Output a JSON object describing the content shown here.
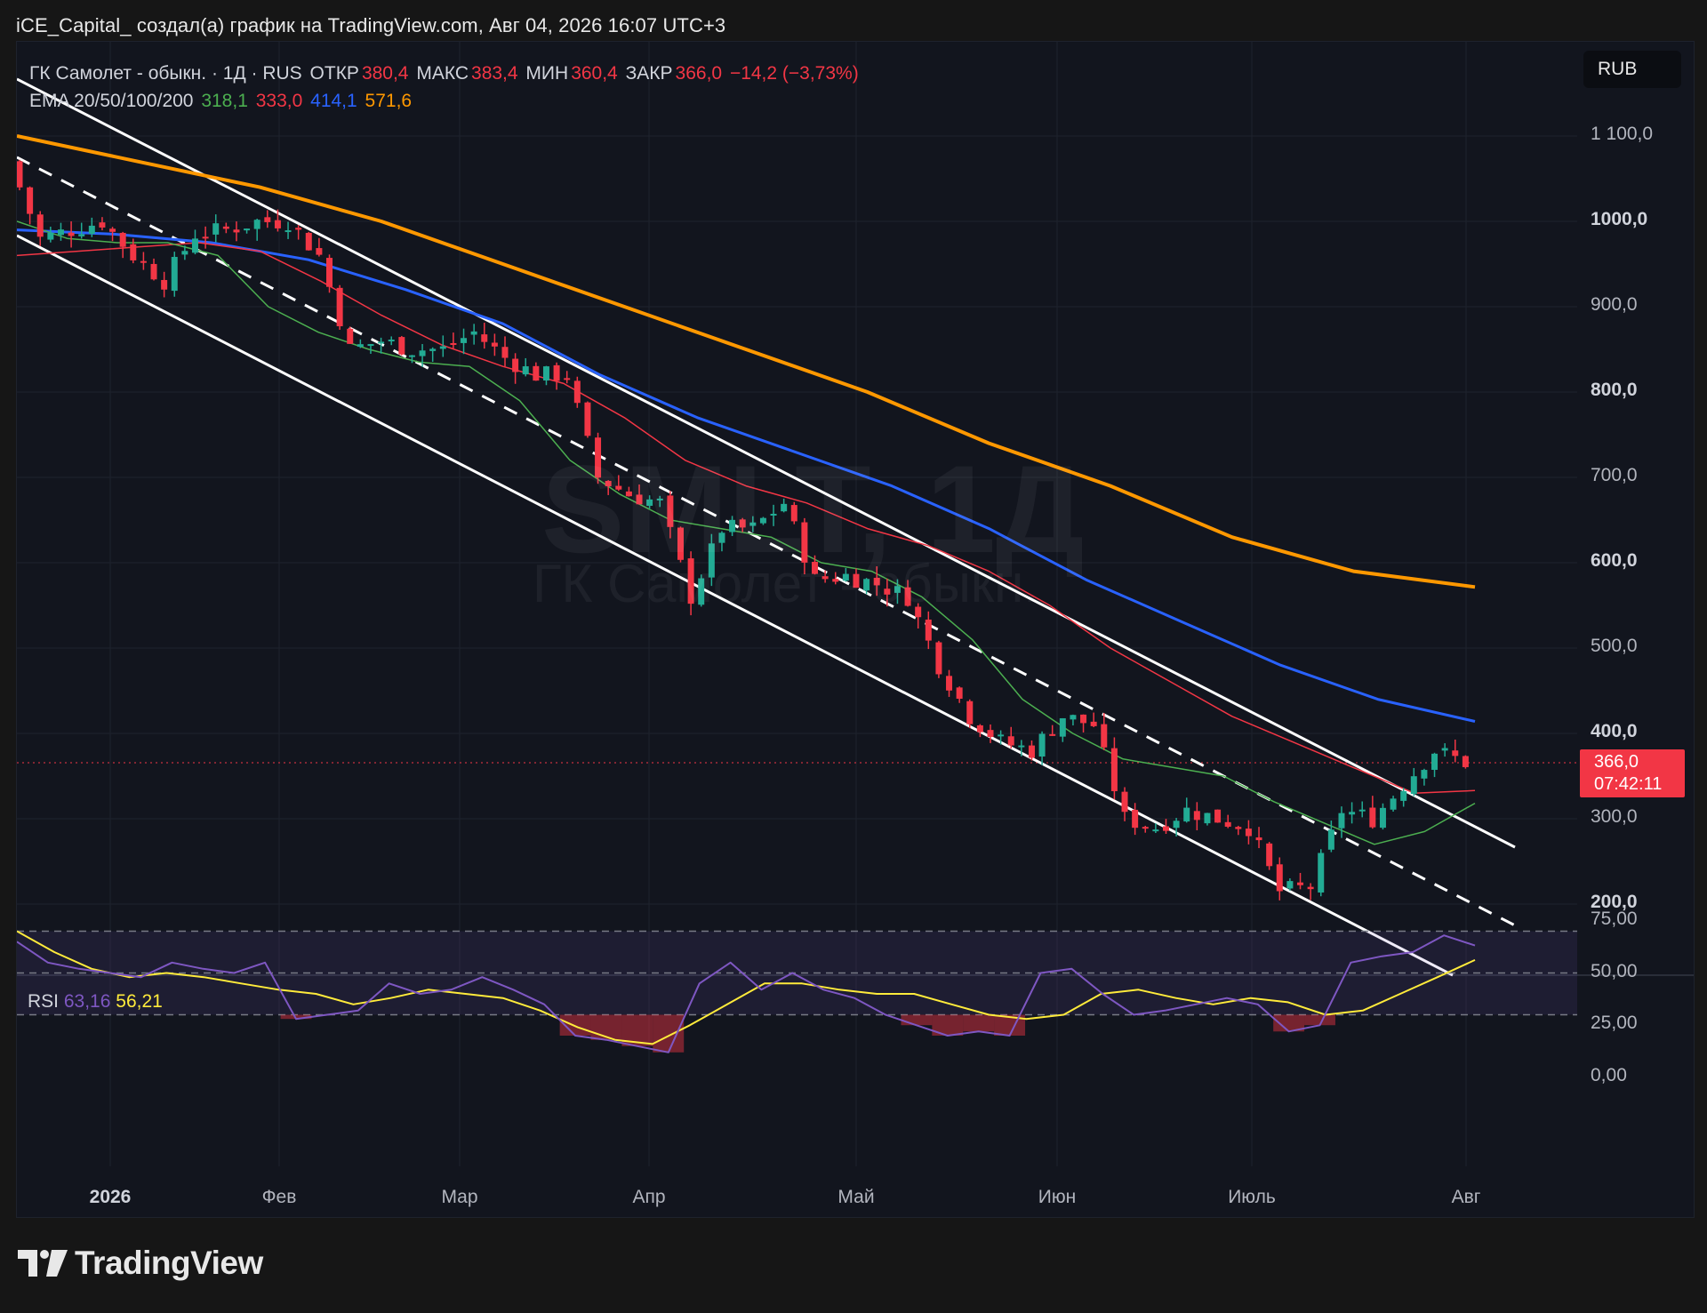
{
  "caption": "iCE_Capital_ создал(а) график на TradingView.com, Авг 04, 2026 16:07 UTC+3",
  "legend": {
    "symbol": "ГК Самолет - обыкн. · 1Д · RUS",
    "open_label": "ОТКР",
    "open": "380,4",
    "high_label": "МАКС",
    "high": "383,4",
    "low_label": "МИН",
    "low": "360,4",
    "close_label": "ЗАКР",
    "close": "366,0",
    "change": "−14,2 (−3,73%)",
    "ema_label": "EMA 20/50/100/200",
    "ema20": "318,1",
    "ema50": "333,0",
    "ema100": "414,1",
    "ema200": "571,6"
  },
  "currency": "RUB",
  "watermark": {
    "ticker": "SMLT, 1Д",
    "name": "ГК Самолет - обыкн."
  },
  "price_badge": {
    "price": "366,0",
    "countdown": "07:42:11"
  },
  "rsi_legend": {
    "label": "RSI",
    "value": "63,16",
    "ma": "56,21"
  },
  "brand": "TradingView",
  "colors": {
    "up": "#22ab94",
    "down": "#f23645",
    "ema20": "#4caf50",
    "ema50": "#f23645",
    "ema100": "#2962ff",
    "ema200": "#ff9800",
    "rsi": "#7e57c2",
    "rsi_ma": "#ffeb3b",
    "channel": "#ffffff"
  },
  "chart_data": {
    "type": "candlestick",
    "y_axis": {
      "ticks": [
        "1 100,0",
        "1000,0",
        "900,0",
        "800,0",
        "700,0",
        "600,0",
        "500,0",
        "400,0",
        "300,0",
        "200,0"
      ],
      "values": [
        1100,
        1000,
        900,
        800,
        700,
        600,
        500,
        400,
        300,
        200
      ],
      "bold": [
        false,
        true,
        false,
        true,
        false,
        true,
        false,
        true,
        false,
        true
      ]
    },
    "x_axis": {
      "ticks": [
        "2026",
        "Фев",
        "Мар",
        "Апр",
        "Май",
        "Июн",
        "Июль",
        "Авг"
      ],
      "bold": [
        true,
        false,
        false,
        false,
        false,
        false,
        false,
        false
      ]
    },
    "price_path": [
      1070,
      980,
      990,
      1000,
      960,
      930,
      985,
      990,
      1000,
      1000,
      960,
      850,
      860,
      850,
      850,
      870,
      840,
      820,
      820,
      700,
      680,
      670,
      560,
      640,
      640,
      670,
      580,
      585,
      575,
      560,
      480,
      420,
      390,
      380,
      420,
      410,
      300,
      290,
      310,
      300,
      290,
      215,
      220,
      310,
      300,
      340,
      380,
      366
    ],
    "ema": {
      "ema20": [
        1000,
        980,
        975,
        975,
        960,
        900,
        870,
        850,
        835,
        830,
        790,
        720,
        680,
        650,
        640,
        630,
        600,
        590,
        560,
        510,
        440,
        400,
        370,
        360,
        350,
        320,
        295,
        270,
        285,
        318.1
      ],
      "ema50": [
        960,
        965,
        970,
        975,
        965,
        930,
        890,
        855,
        830,
        810,
        770,
        720,
        690,
        670,
        640,
        620,
        590,
        550,
        500,
        460,
        420,
        390,
        360,
        330,
        333
      ],
      "ema100": [
        990,
        985,
        975,
        955,
        920,
        880,
        820,
        770,
        730,
        690,
        640,
        580,
        530,
        480,
        440,
        414.1
      ],
      "ema200": [
        1100,
        1070,
        1040,
        1000,
        950,
        900,
        850,
        800,
        740,
        690,
        630,
        590,
        571.6
      ]
    },
    "rsi": {
      "ticks": [
        "75,00",
        "50,00",
        "25,00",
        "0,00"
      ],
      "values": [
        75,
        50,
        25,
        0
      ],
      "upper": 70,
      "lower": 30,
      "rsi_path": [
        65,
        55,
        52,
        50,
        48,
        55,
        52,
        50,
        55,
        28,
        30,
        32,
        45,
        40,
        42,
        48,
        42,
        35,
        20,
        18,
        15,
        12,
        45,
        55,
        42,
        50,
        42,
        38,
        30,
        25,
        20,
        22,
        20,
        50,
        52,
        40,
        30,
        32,
        35,
        38,
        35,
        22,
        25,
        55,
        58,
        60,
        68,
        63.16
      ],
      "rsi_ma_path": [
        70,
        60,
        52,
        48,
        50,
        48,
        45,
        42,
        40,
        35,
        38,
        42,
        40,
        38,
        32,
        24,
        18,
        16,
        25,
        35,
        45,
        45,
        42,
        40,
        40,
        35,
        30,
        28,
        30,
        40,
        42,
        38,
        35,
        38,
        36,
        30,
        32,
        40,
        48,
        56.21
      ]
    }
  }
}
